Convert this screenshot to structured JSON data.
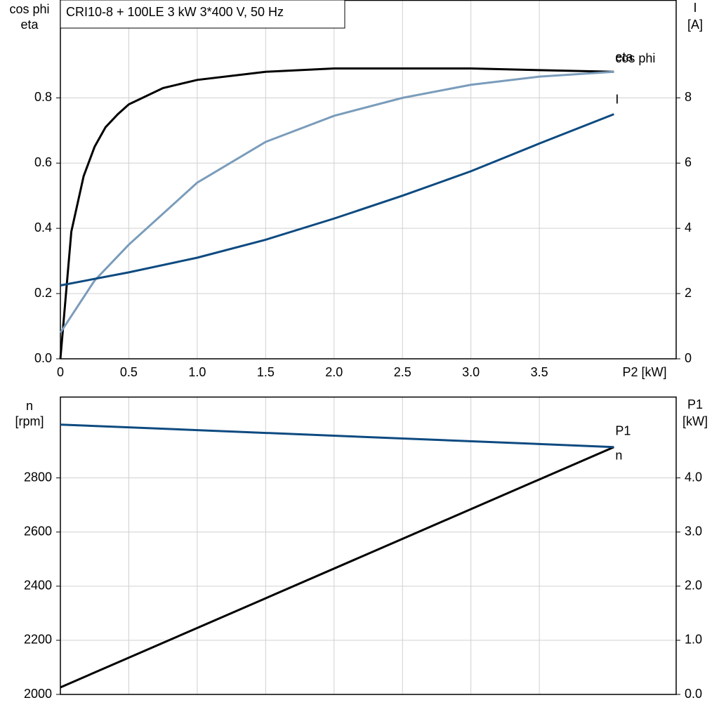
{
  "chart_data": [
    {
      "type": "line",
      "title": "CRI10-8 + 100LE   3 kW   3*400 V, 50 Hz",
      "ylabel": [
        "cos phi",
        "eta"
      ],
      "y2label": [
        "I",
        "[A]"
      ],
      "xlabel": "P2 [kW]",
      "xlim": [
        0,
        4.5
      ],
      "xticks": [
        {
          "value": 0,
          "label": "0"
        },
        0.5,
        {
          "value": 1,
          "label": "1.0"
        },
        1.5,
        {
          "value": 2,
          "label": "2.0"
        },
        2.5,
        {
          "value": 3,
          "label": "3.0"
        },
        3.5
      ],
      "ylim": [
        0,
        1.1
      ],
      "yticks": [
        {
          "value": 0,
          "label": "0.0"
        },
        0.2,
        0.4,
        0.6,
        0.8
      ],
      "y2lim": [
        0,
        11
      ],
      "y2ticks": [
        0,
        2,
        4,
        6,
        8
      ],
      "grid": true,
      "series": [
        {
          "name": "eta",
          "color": "#000000",
          "x": [
            0,
            0.08,
            0.17,
            0.25,
            0.33,
            0.42,
            0.5,
            0.75,
            1.0,
            1.5,
            2.0,
            2.5,
            3.0,
            3.5,
            4.045
          ],
          "values": [
            0,
            0.39,
            0.56,
            0.65,
            0.71,
            0.75,
            0.78,
            0.83,
            0.855,
            0.88,
            0.89,
            0.89,
            0.89,
            0.885,
            0.88
          ]
        },
        {
          "name": "cos phi",
          "color": "#7a9cbb",
          "x": [
            0,
            0.25,
            0.5,
            1.0,
            1.5,
            2.0,
            2.5,
            3.0,
            3.5,
            4.045
          ],
          "values": [
            0.08,
            0.24,
            0.35,
            0.54,
            0.665,
            0.745,
            0.8,
            0.84,
            0.865,
            0.88
          ]
        },
        {
          "name": "I",
          "color": "#0d4a80",
          "axis": "y2",
          "x": [
            0,
            0.5,
            1.0,
            1.5,
            2.0,
            2.5,
            3.0,
            3.5,
            4.045
          ],
          "values": [
            2.25,
            2.65,
            3.1,
            3.65,
            4.3,
            5.0,
            5.75,
            6.6,
            7.5
          ]
        }
      ]
    },
    {
      "type": "line",
      "ylabel": [
        "n",
        "[rpm]"
      ],
      "y2label": [
        "P1",
        "[kW]"
      ],
      "xlim": [
        0,
        4.5
      ],
      "xticks": [
        0,
        0.5,
        1,
        1.5,
        2,
        2.5,
        3,
        3.5
      ],
      "ylim": [
        2000,
        3100
      ],
      "yticks": [
        2000,
        2200,
        2400,
        2600,
        2800
      ],
      "y2lim": [
        0,
        5.5
      ],
      "y2ticks": [
        {
          "value": 0,
          "label": "0.0"
        },
        {
          "value": 1,
          "label": "1.0"
        },
        {
          "value": 2,
          "label": "2.0"
        },
        {
          "value": 3,
          "label": "3.0"
        },
        {
          "value": 4,
          "label": "4.0"
        }
      ],
      "grid": true,
      "series": [
        {
          "name": "P1",
          "color": "#000000",
          "axis": "y2",
          "x": [
            0,
            4.045
          ],
          "values": [
            0.13,
            4.57
          ]
        },
        {
          "name": "n",
          "color": "#0d4a80",
          "x": [
            0,
            4.045
          ],
          "values": [
            2997,
            2914
          ]
        }
      ]
    }
  ]
}
